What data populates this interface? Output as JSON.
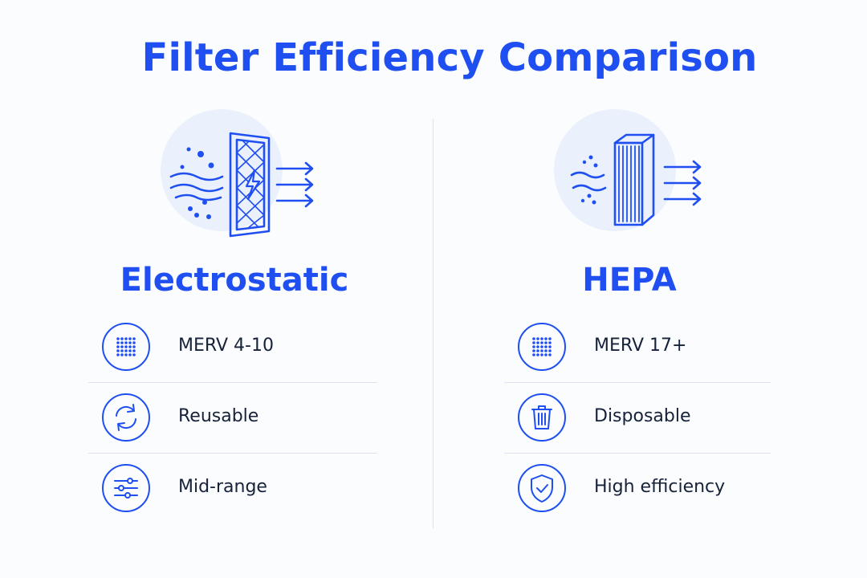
{
  "title": "Filter Efficiency Comparison",
  "colors": {
    "accent": "#1f4ff0",
    "text": "#16213a",
    "circle_bg": "#eaf1fd",
    "divider": "#dbe3f1"
  },
  "electrostatic": {
    "name": "Electrostatic",
    "hero_icon": "electrostatic-filter-airflow",
    "features": [
      {
        "icon": "dot-grid-icon",
        "label": "MERV 4-10"
      },
      {
        "icon": "recycle-arrows-icon",
        "label": "Reusable"
      },
      {
        "icon": "sliders-icon",
        "label": "Mid-range"
      }
    ]
  },
  "hepa": {
    "name": "HEPA",
    "hero_icon": "hepa-filter-airflow",
    "features": [
      {
        "icon": "dot-grid-icon",
        "label": "MERV 17+"
      },
      {
        "icon": "trash-icon",
        "label": "Disposable"
      },
      {
        "icon": "shield-check-icon",
        "label": "High efficiency"
      }
    ]
  }
}
